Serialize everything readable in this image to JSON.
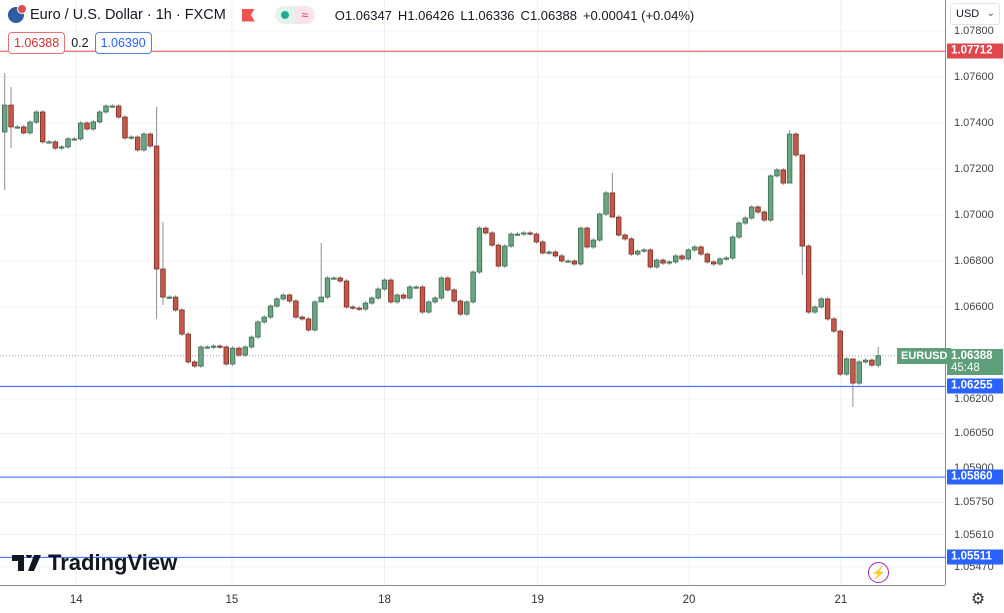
{
  "header": {
    "symbol_title": "Euro / U.S. Dollar · 1h · FXCM",
    "ohlc": {
      "o_label": "O",
      "open": "1.06347",
      "h_label": "H",
      "high": "1.06426",
      "l_label": "L",
      "low": "1.06336",
      "c_label": "C",
      "close": "1.06388",
      "change": "+0.00041 (+0.04%)"
    },
    "sell_price": "1.06388",
    "spread": "0.2",
    "buy_price": "1.06390",
    "status_icon_1": "market-open-dot-icon",
    "status_icon_2": "delayed-data-icon",
    "status_icon_2_glyph": "≈"
  },
  "currency_selector": {
    "value": "USD"
  },
  "watermark": "TradingView",
  "symbol_tag": "EURUSD",
  "countdown": "45:48",
  "colors": {
    "up": "#6aa582",
    "down": "#c4584a",
    "line_red": "#e0474c",
    "line_blue": "#2962ff",
    "last_price": "#5e9e78"
  },
  "chart_data": {
    "type": "candlestick",
    "title": "Euro / U.S. Dollar · 1h · FXCM",
    "ylim": [
      1.05391,
      1.07935
    ],
    "grid": true,
    "y_ticks": [
      "1.07800",
      "1.07600",
      "1.07400",
      "1.07200",
      "1.07000",
      "1.06800",
      "1.06600",
      "1.06200",
      "1.06050",
      "1.05900",
      "1.05750",
      "1.05610",
      "1.05470"
    ],
    "x_ticks": [
      "14",
      "15",
      "18",
      "19",
      "20",
      "21"
    ],
    "first_open": 1.07361,
    "closes": [
      1.07478,
      1.07383,
      1.07383,
      1.07357,
      1.07404,
      1.07448,
      1.07318,
      1.07318,
      1.07291,
      1.07296,
      1.07331,
      1.07331,
      1.074,
      1.07374,
      1.07405,
      1.07448,
      1.07474,
      1.07474,
      1.07426,
      1.07335,
      1.07339,
      1.07283,
      1.07352,
      1.073,
      1.06765,
      1.06643,
      1.06643,
      1.06587,
      1.06482,
      1.06361,
      1.06343,
      1.06426,
      1.06426,
      1.0643,
      1.06426,
      1.06352,
      1.06421,
      1.06391,
      1.06426,
      1.06469,
      1.06535,
      1.06556,
      1.06604,
      1.06635,
      1.06652,
      1.06626,
      1.06556,
      1.06548,
      1.065,
      1.06622,
      1.06643,
      1.06726,
      1.06726,
      1.06713,
      1.066,
      1.06595,
      1.06591,
      1.06617,
      1.06639,
      1.06678,
      1.06717,
      1.06622,
      1.06652,
      1.06639,
      1.06687,
      1.06687,
      1.06578,
      1.06622,
      1.06639,
      1.06726,
      1.06674,
      1.06626,
      1.06569,
      1.06622,
      1.06752,
      1.06943,
      1.06922,
      1.06869,
      1.06778,
      1.06865,
      1.06917,
      1.06917,
      1.06922,
      1.06917,
      1.06883,
      1.06835,
      1.06839,
      1.06822,
      1.068,
      1.068,
      1.06787,
      1.06943,
      1.06861,
      1.06891,
      1.07004,
      1.07096,
      1.06991,
      1.06913,
      1.06896,
      1.0683,
      1.06843,
      1.06848,
      1.06774,
      1.06804,
      1.06791,
      1.06796,
      1.06822,
      1.06809,
      1.06848,
      1.06861,
      1.0683,
      1.06796,
      1.06787,
      1.06809,
      1.06813,
      1.06904,
      1.06965,
      1.06987,
      1.07035,
      1.07013,
      1.06978,
      1.0717,
      1.07196,
      1.07139,
      1.07352,
      1.07261,
      1.06865,
      1.06578,
      1.066,
      1.06635,
      1.06548,
      1.06495,
      1.06308,
      1.06374,
      1.06269,
      1.06361,
      1.06369,
      1.06347,
      1.06388
    ],
    "wick_extremes": {
      "0": [
        1.07617,
        1.07109
      ],
      "1": [
        1.07557,
        1.07291
      ],
      "24": [
        1.0747,
        1.06548
      ],
      "25": [
        1.0697,
        1.06609
      ],
      "50": [
        1.06878,
        1.06622
      ],
      "96": [
        1.07183,
        1.06991
      ],
      "124": [
        1.0737,
        1.07139
      ],
      "126": [
        1.0688,
        1.06739
      ],
      "134": [
        1.06374,
        1.06165
      ],
      "138": [
        1.06426,
        1.06336
      ]
    },
    "horizontal_lines": [
      {
        "price": "1.07712",
        "color": "red"
      },
      {
        "price": "1.06255",
        "color": "blue"
      },
      {
        "price": "1.05860",
        "color": "blue"
      },
      {
        "price": "1.05511",
        "color": "blue"
      }
    ],
    "last_price": "1.06388"
  }
}
